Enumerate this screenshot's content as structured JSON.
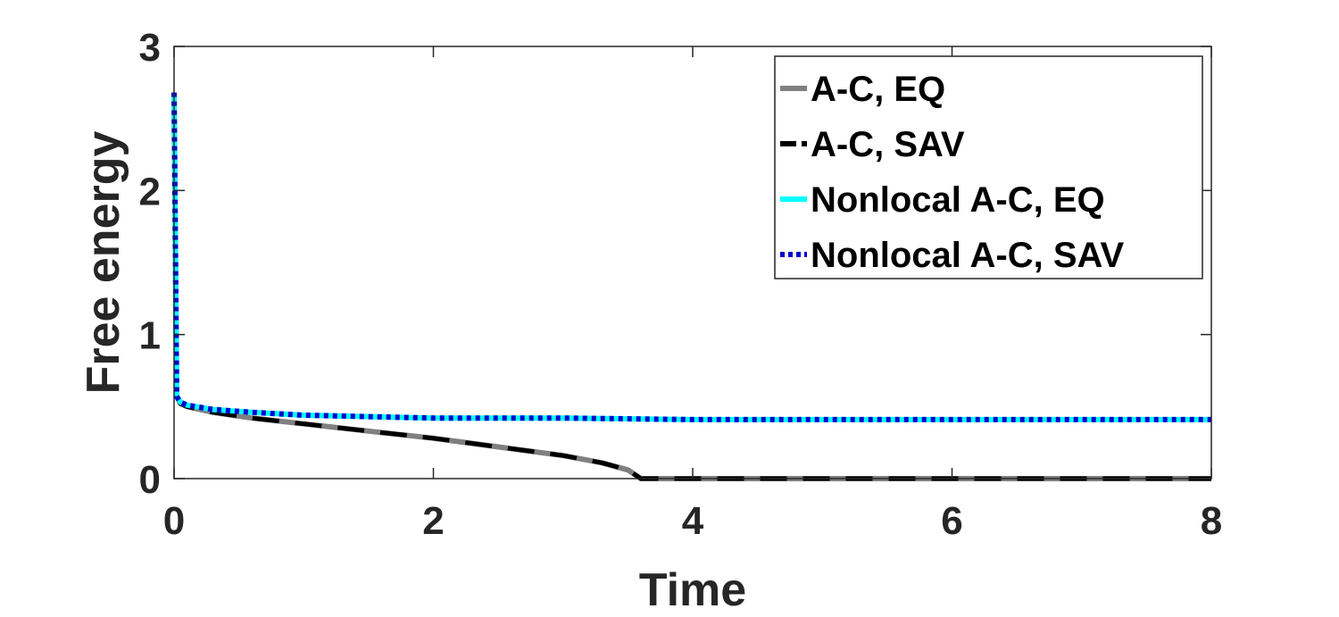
{
  "chart_data": {
    "type": "line",
    "title": "",
    "xlabel": "Time",
    "ylabel": "Free energy",
    "xlim": [
      0,
      8
    ],
    "ylim": [
      0,
      3
    ],
    "xticks": [
      0,
      2,
      4,
      6,
      8
    ],
    "yticks": [
      0,
      1,
      2,
      3
    ],
    "grid": false,
    "legend_position": "top-right",
    "series": [
      {
        "name": "A-C, EQ",
        "color": "#808080",
        "style": "solid",
        "x": [
          0,
          0.02,
          0.05,
          0.1,
          0.3,
          0.6,
          1.0,
          1.5,
          2.0,
          2.5,
          3.0,
          3.3,
          3.5,
          3.6,
          3.7,
          4.0,
          5.0,
          6.0,
          7.0,
          8.0
        ],
        "y": [
          2.68,
          0.57,
          0.52,
          0.5,
          0.46,
          0.42,
          0.38,
          0.33,
          0.28,
          0.22,
          0.16,
          0.11,
          0.06,
          0.0,
          0.0,
          0.0,
          0.0,
          0.0,
          0.0,
          0.0
        ]
      },
      {
        "name": "A-C, SAV",
        "color": "#000000",
        "style": "dashed",
        "x": [
          0,
          0.02,
          0.05,
          0.1,
          0.3,
          0.6,
          1.0,
          1.5,
          2.0,
          2.5,
          3.0,
          3.3,
          3.5,
          3.6,
          3.7,
          4.0,
          5.0,
          6.0,
          7.0,
          8.0
        ],
        "y": [
          2.68,
          0.57,
          0.52,
          0.5,
          0.46,
          0.42,
          0.38,
          0.33,
          0.28,
          0.22,
          0.16,
          0.11,
          0.06,
          0.0,
          0.0,
          0.0,
          0.0,
          0.0,
          0.0,
          0.0
        ]
      },
      {
        "name": "Nonlocal A-C, EQ",
        "color": "#00FFFF",
        "style": "solid",
        "x": [
          0,
          0.02,
          0.05,
          0.1,
          0.3,
          0.6,
          1.0,
          1.5,
          2.0,
          3.0,
          4.0,
          5.0,
          6.0,
          7.0,
          8.0
        ],
        "y": [
          2.68,
          0.57,
          0.53,
          0.51,
          0.48,
          0.46,
          0.44,
          0.43,
          0.42,
          0.42,
          0.41,
          0.41,
          0.41,
          0.41,
          0.41
        ]
      },
      {
        "name": "Nonlocal A-C, SAV",
        "color": "#0000CD",
        "style": "dotted",
        "x": [
          0,
          0.02,
          0.05,
          0.1,
          0.3,
          0.6,
          1.0,
          1.5,
          2.0,
          3.0,
          4.0,
          5.0,
          6.0,
          7.0,
          8.0
        ],
        "y": [
          2.68,
          0.57,
          0.53,
          0.51,
          0.48,
          0.46,
          0.44,
          0.43,
          0.42,
          0.42,
          0.41,
          0.41,
          0.41,
          0.41,
          0.41
        ]
      }
    ]
  }
}
